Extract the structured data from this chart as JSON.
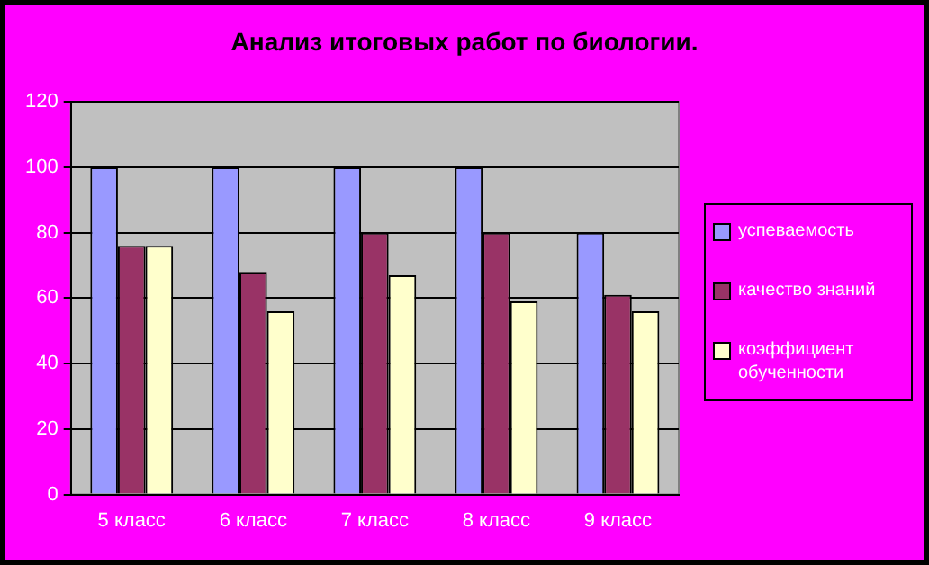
{
  "chart_data": {
    "type": "bar",
    "title": "Анализ итоговых работ по биологии.",
    "categories": [
      "5 класс",
      "6 класс",
      "7 класс",
      "8 класс",
      "9 класс"
    ],
    "series": [
      {
        "name": "успеваемость",
        "color": "#9999ff",
        "values": [
          100,
          100,
          100,
          100,
          80
        ]
      },
      {
        "name": "качество знаний",
        "color": "#993366",
        "values": [
          76,
          68,
          80,
          80,
          61
        ]
      },
      {
        "name": "коэффициент обученности",
        "color": "#ffffcc",
        "values": [
          76,
          56,
          67,
          59,
          56
        ]
      }
    ],
    "ylim": [
      0,
      120
    ],
    "yticks": [
      0,
      20,
      40,
      60,
      80,
      100,
      120
    ],
    "grid": "y",
    "legend": "right"
  }
}
